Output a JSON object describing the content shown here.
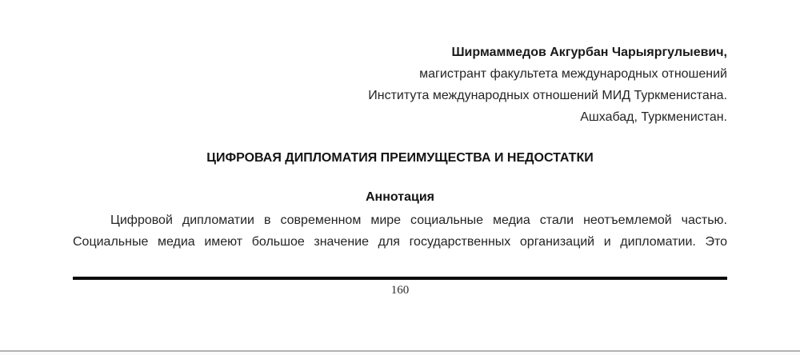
{
  "page": {
    "author": {
      "lines": [
        "Ширмаммедов Акгурбан Чарыяргулыевич,",
        "магистрант факультета международных отношений",
        "Института международных отношений МИД Туркменистана.",
        "Ашхабад, Туркменистан."
      ]
    },
    "title": "ЦИФРОВАЯ ДИПЛОМАТИЯ ПРЕИМУЩЕСТВА И НЕДОСТАТКИ",
    "abstract": {
      "heading": "Аннотация",
      "lines": [
        "Цифровой дипломатии в современном мире социальные медиа стали неотъемлемой частью.",
        "Социальные медиа имеют большое значение для государственных организаций и дипломатии. Это"
      ]
    },
    "footer": {
      "page_number": "160"
    },
    "colors": {
      "text": "#1f1f1f",
      "rule": "#0a0a0a",
      "page_edge": "#b3b3b6"
    }
  }
}
